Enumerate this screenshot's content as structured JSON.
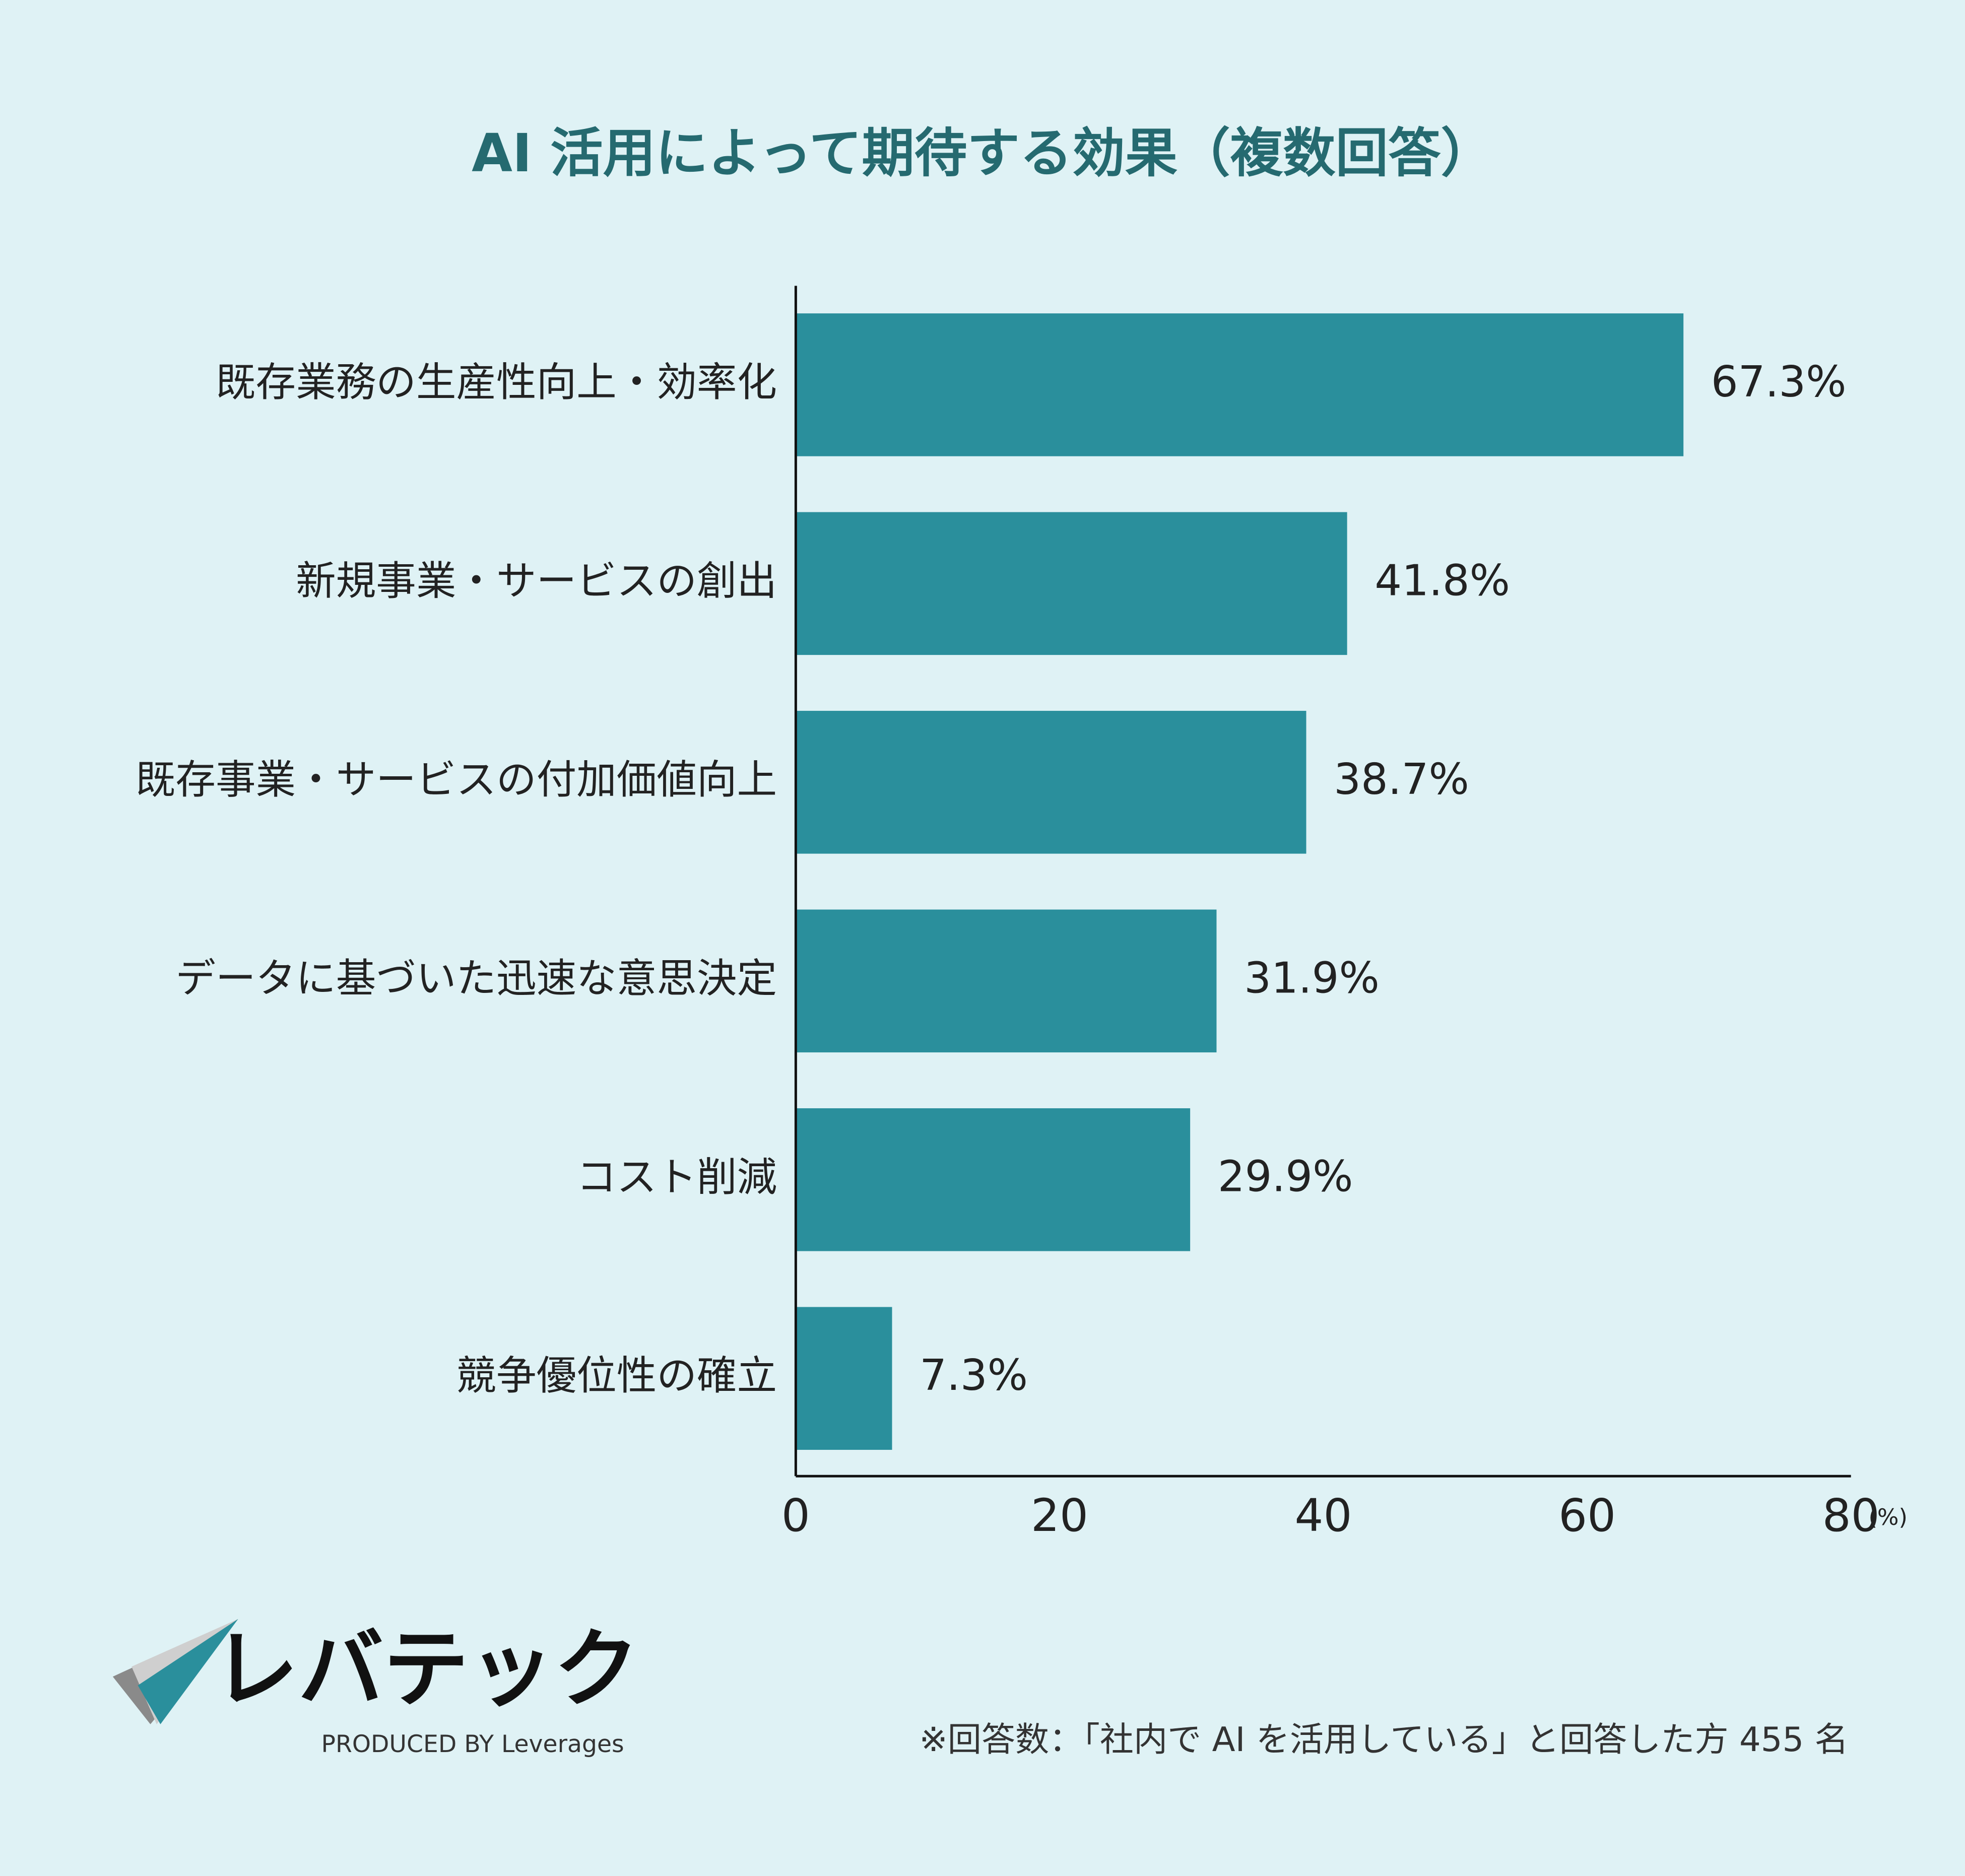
{
  "chart_data": {
    "type": "bar",
    "orientation": "horizontal",
    "title": "AI 活用によって期待する効果（複数回答）",
    "categories": [
      "既存業務の生産性向上・効率化",
      "新規事業・サービスの創出",
      "既存事業・サービスの付加価値向上",
      "データに基づいた迅速な意思決定",
      "コスト削減",
      "競争優位性の確立"
    ],
    "values": [
      67.3,
      41.8,
      38.7,
      31.9,
      29.9,
      7.3
    ],
    "value_labels": [
      "67.3%",
      "41.8%",
      "38.7%",
      "31.9%",
      "29.9%",
      "7.3%"
    ],
    "color": "#2a8f9c",
    "xlim": [
      0,
      80
    ],
    "xticks": [
      0,
      20,
      40,
      60,
      80
    ],
    "x_unit": "(%)",
    "note": "※回答数：「社内で AI を活用している」と回答した方 455 名"
  },
  "brand": {
    "name": "レバテック",
    "tagline": "PRODUCED BY Leverages"
  }
}
